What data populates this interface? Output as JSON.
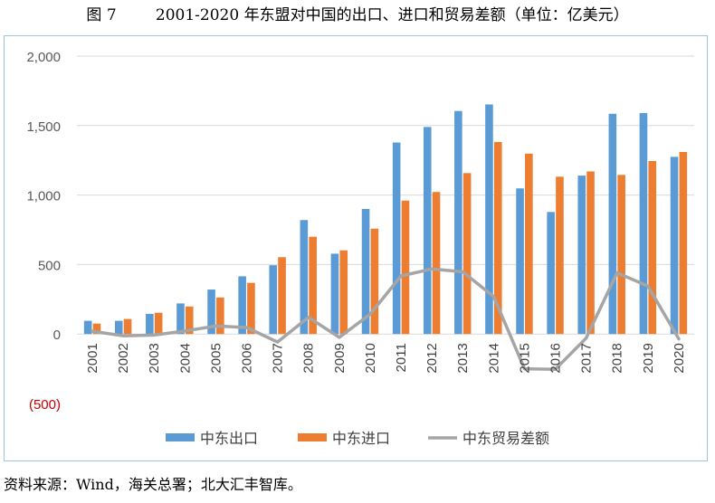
{
  "figure": {
    "label": "图 7",
    "title": "2001-2020 年东盟对中国的出口、进口和贸易差额（单位：亿美元）"
  },
  "source_note": "资料来源：Wind，海关总署；北大汇丰智库。",
  "colors": {
    "export": "#5b9bd5",
    "import": "#ed7d31",
    "balance": "#a5a5a5",
    "negative_tick": "#c00000",
    "grid": "#d9d9d9",
    "frame": "#9dc3e6"
  },
  "chart_data": {
    "type": "bar",
    "categories": [
      "2001",
      "2002",
      "2003",
      "2004",
      "2005",
      "2006",
      "2007",
      "2008",
      "2009",
      "2010",
      "2011",
      "2012",
      "2013",
      "2014",
      "2015",
      "2016",
      "2017",
      "2018",
      "2019",
      "2020"
    ],
    "series": [
      {
        "name": "中东出口",
        "type": "bar",
        "values": [
          95,
          95,
          145,
          220,
          320,
          415,
          495,
          820,
          578,
          900,
          1378,
          1490,
          1605,
          1652,
          1048,
          878,
          1140,
          1585,
          1590,
          1275
        ]
      },
      {
        "name": "中东进口",
        "type": "bar",
        "values": [
          75,
          108,
          153,
          198,
          263,
          368,
          553,
          700,
          602,
          758,
          960,
          1022,
          1158,
          1382,
          1298,
          1132,
          1170,
          1145,
          1245,
          1310
        ]
      },
      {
        "name": "中东贸易差额",
        "type": "line",
        "values": [
          20,
          -13,
          -8,
          22,
          57,
          47,
          -58,
          120,
          -24,
          142,
          418,
          468,
          447,
          270,
          -250,
          -254,
          -30,
          440,
          345,
          -35
        ]
      }
    ],
    "ylim": [
      -500,
      2000
    ],
    "yticks": [
      -500,
      0,
      500,
      1000,
      1500,
      2000
    ],
    "ytick_labels": [
      "(500)",
      "0",
      "500",
      "1,000",
      "1,500",
      "2,000"
    ],
    "gridlines": true,
    "legend_position": "bottom"
  }
}
